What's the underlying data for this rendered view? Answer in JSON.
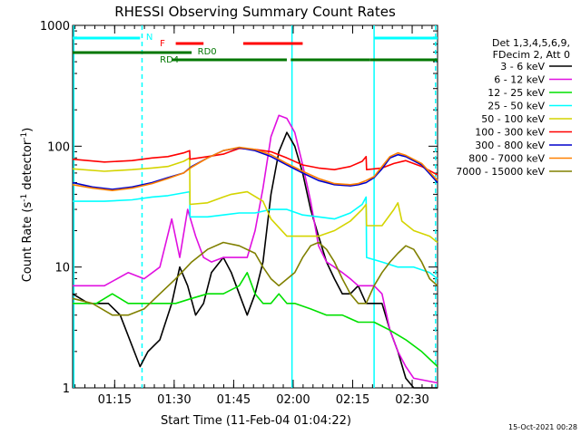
{
  "chart_data": {
    "type": "line",
    "title": "RHESSI Observing Summary Count Rates",
    "xlabel": "Start Time (11-Feb-04 01:04:22)",
    "ylabel": "Count Rate (s⁻¹ detector⁻¹)",
    "ylabel_parts": [
      "Count Rate (s",
      "-1",
      " detector",
      "-1",
      ")"
    ],
    "x_unit": "minutes since 01:04:22",
    "xlim": [
      0,
      92
    ],
    "ylim": [
      1,
      1000
    ],
    "yscale": "log",
    "x_ticks": [
      {
        "t": 10.6,
        "label": "01:15"
      },
      {
        "t": 25.6,
        "label": "01:30"
      },
      {
        "t": 40.6,
        "label": "01:45"
      },
      {
        "t": 55.6,
        "label": "02:00"
      },
      {
        "t": 70.6,
        "label": "02:15"
      },
      {
        "t": 85.6,
        "label": "02:30"
      }
    ],
    "y_ticks": [
      {
        "v": 1,
        "label": "1"
      },
      {
        "v": 10,
        "label": "10"
      },
      {
        "v": 100,
        "label": "100"
      },
      {
        "v": 1000,
        "label": "1000"
      }
    ],
    "legend_placement": "right",
    "legend_header": [
      "Det 1,3,4,5,6,9,",
      "FDecim 2, Att 0"
    ],
    "timestamp": "15-Oct-2021 00:28",
    "series": [
      {
        "name": "3 - 6 keV",
        "color": "#000000",
        "points": [
          [
            0,
            6
          ],
          [
            4,
            5
          ],
          [
            9,
            5
          ],
          [
            12,
            4
          ],
          [
            17,
            1.5
          ],
          [
            19,
            2
          ],
          [
            22,
            2.5
          ],
          [
            25,
            5
          ],
          [
            27,
            10
          ],
          [
            29,
            7
          ],
          [
            31,
            4
          ],
          [
            33,
            5
          ],
          [
            35,
            9
          ],
          [
            38,
            12
          ],
          [
            40,
            9
          ],
          [
            42,
            6
          ],
          [
            44,
            4
          ],
          [
            46,
            6
          ],
          [
            48,
            11
          ],
          [
            50,
            40
          ],
          [
            52,
            90
          ],
          [
            54,
            130
          ],
          [
            56,
            100
          ],
          [
            58,
            60
          ],
          [
            60,
            30
          ],
          [
            62,
            18
          ],
          [
            64,
            11
          ],
          [
            66,
            8
          ],
          [
            68,
            6
          ],
          [
            70,
            6
          ],
          [
            72,
            7
          ],
          [
            74,
            5
          ],
          [
            76,
            5
          ],
          [
            78,
            5
          ],
          [
            80,
            3
          ],
          [
            82,
            2
          ],
          [
            84,
            1.2
          ],
          [
            86,
            1
          ],
          [
            92,
            1
          ]
        ]
      },
      {
        "name": "6 - 12 keV",
        "color": "#e010e0",
        "points": [
          [
            0,
            7
          ],
          [
            8,
            7
          ],
          [
            14,
            9
          ],
          [
            18,
            8
          ],
          [
            22,
            10
          ],
          [
            25,
            25
          ],
          [
            27,
            12
          ],
          [
            29,
            30
          ],
          [
            31,
            18
          ],
          [
            33,
            12
          ],
          [
            35,
            11
          ],
          [
            38,
            12
          ],
          [
            41,
            12
          ],
          [
            44,
            12
          ],
          [
            46,
            20
          ],
          [
            48,
            45
          ],
          [
            50,
            120
          ],
          [
            52,
            180
          ],
          [
            54,
            170
          ],
          [
            56,
            130
          ],
          [
            58,
            70
          ],
          [
            60,
            35
          ],
          [
            62,
            15
          ],
          [
            64,
            11
          ],
          [
            66,
            10
          ],
          [
            68,
            9
          ],
          [
            70,
            8
          ],
          [
            72,
            7
          ],
          [
            74,
            7
          ],
          [
            76,
            7
          ],
          [
            78,
            6
          ],
          [
            80,
            3
          ],
          [
            82,
            2
          ],
          [
            84,
            1.5
          ],
          [
            86,
            1.2
          ],
          [
            92,
            1.1
          ]
        ]
      },
      {
        "name": "12 - 25 keV",
        "color": "#00e000",
        "points": [
          [
            0,
            5
          ],
          [
            6,
            5
          ],
          [
            10,
            6
          ],
          [
            14,
            5
          ],
          [
            18,
            5
          ],
          [
            22,
            5
          ],
          [
            26,
            5
          ],
          [
            30,
            5.5
          ],
          [
            34,
            6
          ],
          [
            38,
            6
          ],
          [
            42,
            7
          ],
          [
            44,
            9
          ],
          [
            46,
            6
          ],
          [
            48,
            5
          ],
          [
            50,
            5
          ],
          [
            52,
            6
          ],
          [
            54,
            5
          ],
          [
            56,
            5
          ],
          [
            60,
            4.5
          ],
          [
            64,
            4
          ],
          [
            68,
            4
          ],
          [
            72,
            3.5
          ],
          [
            76,
            3.5
          ],
          [
            80,
            3
          ],
          [
            84,
            2.5
          ],
          [
            88,
            2
          ],
          [
            92,
            1.5
          ]
        ]
      },
      {
        "name": "25 - 50 keV",
        "color": "#00ffff",
        "points": [
          [
            0,
            35
          ],
          [
            8,
            35
          ],
          [
            15,
            36
          ],
          [
            20,
            38
          ],
          [
            24,
            39
          ],
          [
            29.5,
            42
          ],
          [
            29.6,
            26
          ],
          [
            34,
            26
          ],
          [
            38,
            27
          ],
          [
            42,
            28
          ],
          [
            46,
            28
          ],
          [
            50,
            30
          ],
          [
            54,
            30
          ],
          [
            58,
            27
          ],
          [
            62,
            26
          ],
          [
            66,
            25
          ],
          [
            70,
            28
          ],
          [
            73,
            33
          ],
          [
            74,
            38
          ],
          [
            74.1,
            12
          ],
          [
            78,
            11
          ],
          [
            82,
            10
          ],
          [
            86,
            10
          ],
          [
            90,
            9
          ],
          [
            92,
            8
          ]
        ]
      },
      {
        "name": "50 - 100 keV",
        "color": "#d4d400",
        "points": [
          [
            0,
            65
          ],
          [
            8,
            62
          ],
          [
            15,
            64
          ],
          [
            20,
            66
          ],
          [
            24,
            68
          ],
          [
            28,
            75
          ],
          [
            29.5,
            80
          ],
          [
            29.6,
            33
          ],
          [
            34,
            34
          ],
          [
            38,
            38
          ],
          [
            40,
            40
          ],
          [
            44,
            42
          ],
          [
            48,
            35
          ],
          [
            50,
            25
          ],
          [
            54,
            18
          ],
          [
            58,
            18
          ],
          [
            62,
            18
          ],
          [
            66,
            20
          ],
          [
            70,
            24
          ],
          [
            73,
            30
          ],
          [
            74,
            33
          ],
          [
            74.1,
            22
          ],
          [
            78,
            22
          ],
          [
            81,
            30
          ],
          [
            82,
            34
          ],
          [
            83,
            24
          ],
          [
            86,
            20
          ],
          [
            90,
            18
          ],
          [
            92,
            16
          ]
        ]
      },
      {
        "name": "100 - 300 keV",
        "color": "#ff0000",
        "points": [
          [
            0,
            78
          ],
          [
            8,
            74
          ],
          [
            15,
            76
          ],
          [
            20,
            80
          ],
          [
            24,
            82
          ],
          [
            28,
            88
          ],
          [
            29.5,
            92
          ],
          [
            29.6,
            78
          ],
          [
            34,
            82
          ],
          [
            38,
            86
          ],
          [
            42,
            96
          ],
          [
            46,
            94
          ],
          [
            50,
            90
          ],
          [
            54,
            80
          ],
          [
            58,
            70
          ],
          [
            62,
            66
          ],
          [
            66,
            64
          ],
          [
            70,
            68
          ],
          [
            73,
            75
          ],
          [
            74,
            82
          ],
          [
            74.1,
            64
          ],
          [
            78,
            66
          ],
          [
            81,
            72
          ],
          [
            84,
            76
          ],
          [
            88,
            68
          ],
          [
            92,
            58
          ]
        ]
      },
      {
        "name": "300 - 800 keV",
        "color": "#0000cc",
        "points": [
          [
            0,
            50
          ],
          [
            5,
            46
          ],
          [
            10,
            44
          ],
          [
            15,
            46
          ],
          [
            20,
            50
          ],
          [
            24,
            55
          ],
          [
            28,
            60
          ],
          [
            30,
            68
          ],
          [
            34,
            80
          ],
          [
            38,
            92
          ],
          [
            42,
            97
          ],
          [
            46,
            92
          ],
          [
            50,
            82
          ],
          [
            54,
            70
          ],
          [
            58,
            60
          ],
          [
            62,
            52
          ],
          [
            66,
            48
          ],
          [
            70,
            47
          ],
          [
            72,
            48
          ],
          [
            74,
            50
          ],
          [
            76,
            55
          ],
          [
            78,
            65
          ],
          [
            80,
            80
          ],
          [
            82,
            85
          ],
          [
            84,
            82
          ],
          [
            88,
            70
          ],
          [
            92,
            50
          ]
        ]
      },
      {
        "name": "800 - 7000 keV",
        "color": "#ff8000",
        "points": [
          [
            0,
            48
          ],
          [
            5,
            45
          ],
          [
            10,
            43
          ],
          [
            15,
            45
          ],
          [
            20,
            49
          ],
          [
            24,
            54
          ],
          [
            28,
            60
          ],
          [
            30,
            67
          ],
          [
            34,
            80
          ],
          [
            38,
            92
          ],
          [
            42,
            98
          ],
          [
            46,
            94
          ],
          [
            50,
            85
          ],
          [
            54,
            72
          ],
          [
            58,
            62
          ],
          [
            62,
            54
          ],
          [
            66,
            49
          ],
          [
            70,
            48
          ],
          [
            72,
            49
          ],
          [
            74,
            52
          ],
          [
            76,
            56
          ],
          [
            78,
            68
          ],
          [
            80,
            82
          ],
          [
            82,
            88
          ],
          [
            84,
            84
          ],
          [
            88,
            72
          ],
          [
            92,
            52
          ]
        ]
      },
      {
        "name": "7000 - 15000 keV",
        "color": "#808000",
        "points": [
          [
            0,
            5.5
          ],
          [
            5,
            5
          ],
          [
            10,
            4
          ],
          [
            14,
            4
          ],
          [
            18,
            4.5
          ],
          [
            22,
            6
          ],
          [
            26,
            8
          ],
          [
            30,
            11
          ],
          [
            34,
            14
          ],
          [
            38,
            16
          ],
          [
            42,
            15
          ],
          [
            46,
            13
          ],
          [
            48,
            10
          ],
          [
            50,
            8
          ],
          [
            52,
            7
          ],
          [
            56,
            9
          ],
          [
            58,
            12
          ],
          [
            60,
            15
          ],
          [
            62,
            16
          ],
          [
            64,
            14
          ],
          [
            66,
            11
          ],
          [
            68,
            8
          ],
          [
            70,
            6
          ],
          [
            72,
            5
          ],
          [
            74,
            5
          ],
          [
            76,
            7
          ],
          [
            78,
            9
          ],
          [
            80,
            11
          ],
          [
            82,
            13
          ],
          [
            84,
            15
          ],
          [
            86,
            14
          ],
          [
            88,
            11
          ],
          [
            90,
            8
          ],
          [
            92,
            7
          ]
        ]
      }
    ],
    "markers": {
      "n_label": "N",
      "f_label": "F",
      "rd0_label": "RD0",
      "rd4_label": "RD4",
      "n_color": "#00ffff",
      "f_color": "#ff0000",
      "rd_color": "#007700",
      "n_segments": [
        [
          0,
          17
        ],
        [
          76,
          92
        ]
      ],
      "f_segments": [
        [
          26,
          33
        ],
        [
          43,
          58
        ]
      ],
      "rd0_segments": [
        [
          0,
          30
        ]
      ],
      "rd4_segments": [
        [
          25,
          54
        ],
        [
          55,
          75
        ],
        [
          75,
          92
        ]
      ],
      "cyan_dashed_x": [
        17.5,
        91.5
      ],
      "cyan_solid_x": [
        0.3,
        55.3,
        76
      ]
    }
  }
}
